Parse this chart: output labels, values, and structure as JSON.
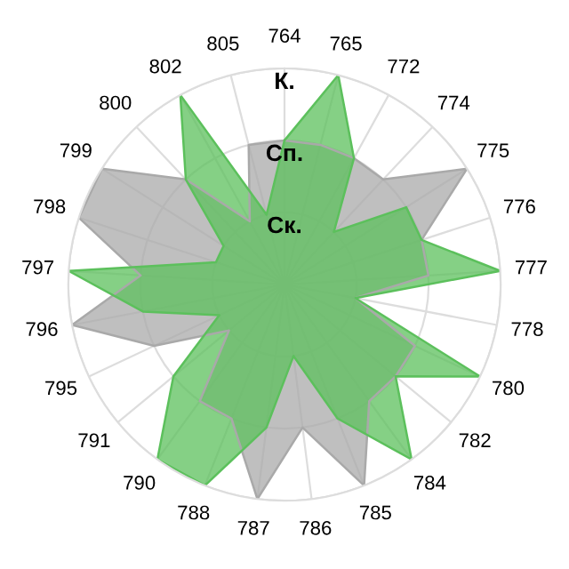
{
  "chart_data": {
    "type": "radar",
    "categories": [
      "764",
      "765",
      "772",
      "774",
      "775",
      "776",
      "777",
      "778",
      "780",
      "782",
      "784",
      "785",
      "786",
      "787",
      "788",
      "790",
      "791",
      "795",
      "796",
      "797",
      "798",
      "799",
      "800",
      "802",
      "805"
    ],
    "ylim": [
      0,
      3
    ],
    "yticks": [
      {
        "value": 1,
        "label": "Ск."
      },
      {
        "value": 2,
        "label": "Сп."
      },
      {
        "value": 3,
        "label": "К."
      }
    ],
    "grid": true,
    "series": [
      {
        "color": "#a9a9a9",
        "values": [
          2,
          2,
          2,
          2,
          3,
          2,
          2,
          1,
          2,
          2,
          2,
          3,
          2,
          3,
          2,
          2,
          1,
          2,
          3,
          2,
          3,
          3,
          2,
          1,
          2
        ]
      },
      {
        "color": "#5cc05c",
        "values": [
          2,
          3,
          2,
          1,
          2,
          2,
          3,
          1,
          3,
          2,
          3,
          2,
          1,
          2,
          3,
          3,
          2,
          1,
          2,
          3,
          1,
          1,
          2,
          3,
          1
        ]
      }
    ]
  }
}
